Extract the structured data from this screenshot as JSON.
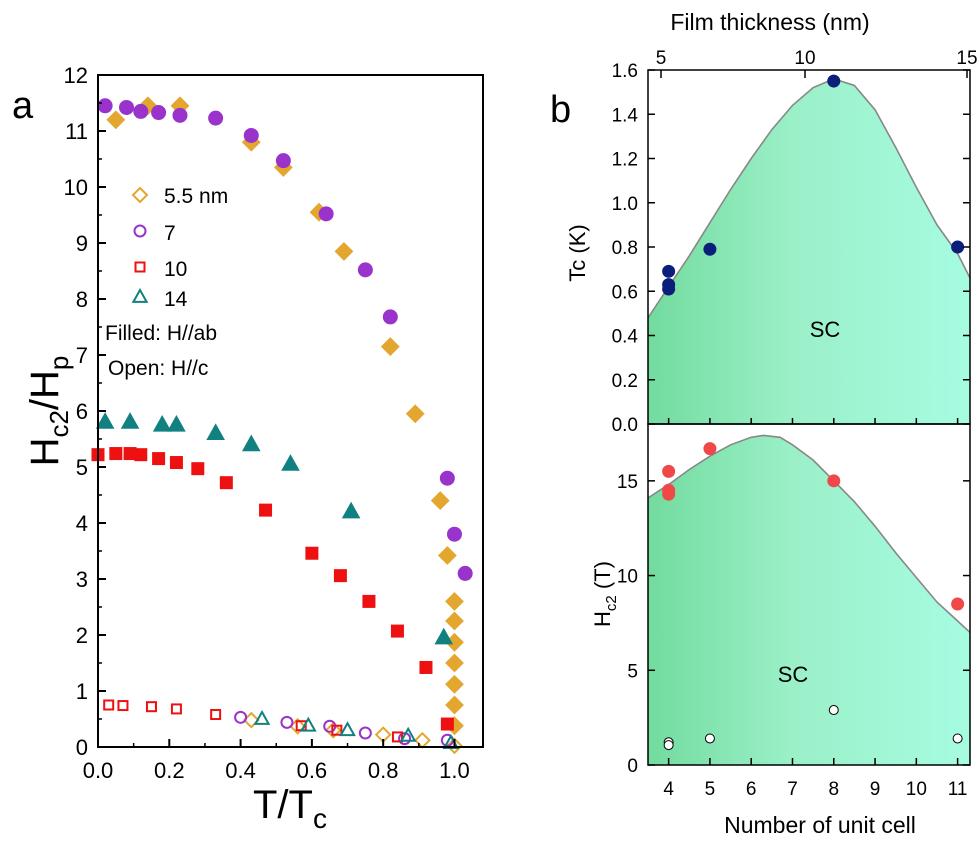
{
  "chart_data": [
    {
      "type": "scatter",
      "panel_label": "a",
      "xlabel": "T/T",
      "xlabel_sub": "c",
      "ylabel": "H",
      "ylabel_sub1": "c2",
      "ylabel_mid": "/H",
      "ylabel_sub2": "p",
      "xlim": [
        0,
        1.08
      ],
      "ylim": [
        0,
        12
      ],
      "xticks": [
        0.0,
        0.2,
        0.4,
        0.6,
        0.8,
        1.0
      ],
      "yticks": [
        0,
        1,
        2,
        3,
        4,
        5,
        6,
        7,
        8,
        9,
        10,
        11,
        12
      ],
      "legend_notes": [
        "Filled: H//ab",
        "Open: H//c"
      ],
      "series": [
        {
          "name": "5.5 nm",
          "marker": "diamond",
          "color": "#E3A72F",
          "filled": [
            [
              0.05,
              11.2
            ],
            [
              0.14,
              11.45
            ],
            [
              0.23,
              11.45
            ],
            [
              0.43,
              10.8
            ],
            [
              0.52,
              10.35
            ],
            [
              0.62,
              9.55
            ],
            [
              0.69,
              8.85
            ],
            [
              0.82,
              7.15
            ],
            [
              0.89,
              5.95
            ],
            [
              0.96,
              4.4
            ],
            [
              0.98,
              3.42
            ],
            [
              1.0,
              2.6
            ],
            [
              1.0,
              2.25
            ],
            [
              1.0,
              1.87
            ],
            [
              1.0,
              1.5
            ],
            [
              1.0,
              1.12
            ],
            [
              1.0,
              0.75
            ],
            [
              1.0,
              0.38
            ]
          ],
          "open": [
            [
              0.43,
              0.48
            ],
            [
              0.56,
              0.37
            ],
            [
              0.66,
              0.3
            ],
            [
              0.8,
              0.22
            ],
            [
              0.91,
              0.12
            ],
            [
              1.0,
              0.02
            ]
          ]
        },
        {
          "name": "7",
          "marker": "circle",
          "color": "#9933CC",
          "filled": [
            [
              0.02,
              11.45
            ],
            [
              0.08,
              11.42
            ],
            [
              0.12,
              11.35
            ],
            [
              0.17,
              11.33
            ],
            [
              0.23,
              11.28
            ],
            [
              0.33,
              11.23
            ],
            [
              0.43,
              10.92
            ],
            [
              0.52,
              10.47
            ],
            [
              0.64,
              9.52
            ],
            [
              0.75,
              8.52
            ],
            [
              0.82,
              7.68
            ],
            [
              0.98,
              4.8
            ],
            [
              1.0,
              3.8
            ],
            [
              1.03,
              3.1
            ]
          ],
          "open": [
            [
              0.4,
              0.53
            ],
            [
              0.53,
              0.44
            ],
            [
              0.65,
              0.37
            ],
            [
              0.75,
              0.25
            ],
            [
              0.86,
              0.15
            ],
            [
              0.98,
              0.12
            ]
          ]
        },
        {
          "name": "10",
          "marker": "square",
          "color": "#EE1111",
          "filled": [
            [
              0.0,
              5.22
            ],
            [
              0.05,
              5.24
            ],
            [
              0.09,
              5.24
            ],
            [
              0.12,
              5.22
            ],
            [
              0.17,
              5.15
            ],
            [
              0.22,
              5.08
            ],
            [
              0.28,
              4.97
            ],
            [
              0.36,
              4.72
            ],
            [
              0.47,
              4.23
            ],
            [
              0.6,
              3.46
            ],
            [
              0.68,
              3.06
            ],
            [
              0.76,
              2.6
            ],
            [
              0.84,
              2.07
            ],
            [
              0.92,
              1.42
            ],
            [
              0.98,
              0.41
            ]
          ],
          "open": [
            [
              0.03,
              0.75
            ],
            [
              0.07,
              0.74
            ],
            [
              0.15,
              0.72
            ],
            [
              0.22,
              0.68
            ],
            [
              0.33,
              0.58
            ],
            [
              0.57,
              0.38
            ],
            [
              0.67,
              0.3
            ],
            [
              0.84,
              0.18
            ]
          ]
        },
        {
          "name": "14",
          "marker": "triangle",
          "color": "#118080",
          "filled": [
            [
              0.02,
              5.8
            ],
            [
              0.09,
              5.8
            ],
            [
              0.18,
              5.75
            ],
            [
              0.22,
              5.75
            ],
            [
              0.33,
              5.6
            ],
            [
              0.43,
              5.4
            ],
            [
              0.54,
              5.05
            ],
            [
              0.71,
              4.2
            ],
            [
              0.97,
              1.95
            ]
          ],
          "open": [
            [
              0.46,
              0.5
            ],
            [
              0.59,
              0.38
            ],
            [
              0.7,
              0.3
            ],
            [
              0.87,
              0.2
            ],
            [
              0.99,
              0.07
            ]
          ]
        }
      ]
    },
    {
      "type": "scatter",
      "panel_label": "b",
      "xlabel_top": "Film thickness (nm)",
      "xticks_top": [
        5,
        10,
        15
      ],
      "ylabel": "Tc (K)",
      "ylim": [
        0,
        1.6
      ],
      "yticks": [
        0.0,
        0.2,
        0.4,
        0.6,
        0.8,
        1.0,
        1.2,
        1.4,
        1.6
      ],
      "xlim_unit_cell": [
        3.5,
        11.3
      ],
      "region_label": "SC",
      "series": [
        {
          "marker": "circle",
          "color": "#0B1E7A",
          "points": [
            [
              4,
              0.69
            ],
            [
              4,
              0.63
            ],
            [
              4,
              0.61
            ],
            [
              5,
              0.79
            ],
            [
              8,
              1.55
            ],
            [
              11,
              0.8
            ]
          ]
        }
      ],
      "boundary": [
        [
          3.5,
          0.48
        ],
        [
          4.0,
          0.62
        ],
        [
          4.5,
          0.76
        ],
        [
          5.0,
          0.91
        ],
        [
          5.5,
          1.06
        ],
        [
          6.0,
          1.2
        ],
        [
          6.5,
          1.33
        ],
        [
          7.0,
          1.44
        ],
        [
          7.5,
          1.52
        ],
        [
          8.0,
          1.56
        ],
        [
          8.5,
          1.53
        ],
        [
          9.0,
          1.42
        ],
        [
          9.5,
          1.25
        ],
        [
          10.0,
          1.07
        ],
        [
          10.5,
          0.9
        ],
        [
          11.0,
          0.77
        ],
        [
          11.3,
          0.66
        ]
      ]
    },
    {
      "type": "scatter",
      "xlabel": "Number of unit cell",
      "ylabel": "H",
      "ylabel_sub": "c2",
      "ylabel_unit": " (T)",
      "xlim": [
        3.5,
        11.3
      ],
      "ylim": [
        0,
        18
      ],
      "xticks": [
        4,
        5,
        6,
        7,
        8,
        9,
        10,
        11
      ],
      "yticks": [
        0,
        5,
        10,
        15
      ],
      "region_label": "SC",
      "series": [
        {
          "name": "filled",
          "marker": "circle",
          "color": "#F04848",
          "points": [
            [
              4,
              15.5
            ],
            [
              4,
              14.5
            ],
            [
              4,
              14.3
            ],
            [
              5,
              16.7
            ],
            [
              8,
              15.0
            ],
            [
              11,
              8.5
            ]
          ]
        },
        {
          "name": "open",
          "marker": "circle",
          "color": "#ffffff",
          "points": [
            [
              4,
              1.2
            ],
            [
              4,
              1.05
            ],
            [
              5,
              1.4
            ],
            [
              8,
              2.9
            ],
            [
              11,
              1.4
            ]
          ]
        }
      ],
      "boundary": [
        [
          3.5,
          14.1
        ],
        [
          4.0,
          14.8
        ],
        [
          4.5,
          15.6
        ],
        [
          5.0,
          16.3
        ],
        [
          5.5,
          16.9
        ],
        [
          6.0,
          17.3
        ],
        [
          6.3,
          17.4
        ],
        [
          6.7,
          17.3
        ],
        [
          7.0,
          16.9
        ],
        [
          7.5,
          16.1
        ],
        [
          8.0,
          15.0
        ],
        [
          8.5,
          13.9
        ],
        [
          9.0,
          12.6
        ],
        [
          9.5,
          11.2
        ],
        [
          10.0,
          9.9
        ],
        [
          10.5,
          8.6
        ],
        [
          11.0,
          7.6
        ],
        [
          11.3,
          7.0
        ]
      ]
    }
  ]
}
